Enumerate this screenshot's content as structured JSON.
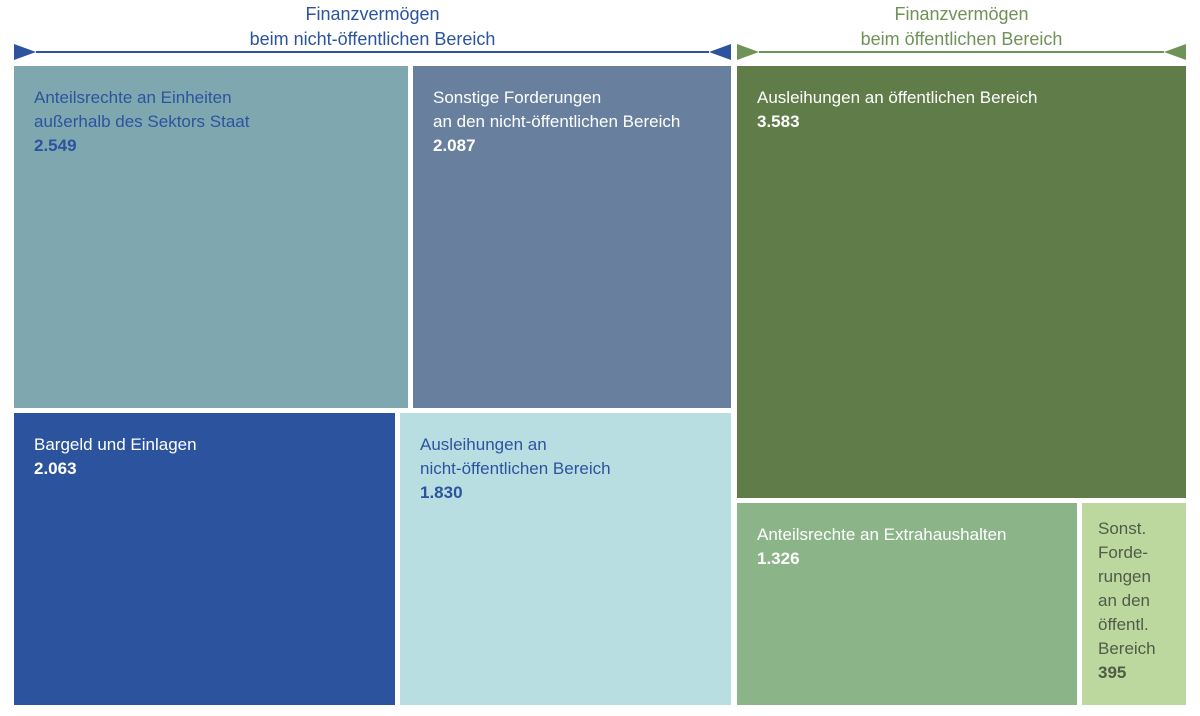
{
  "headers": {
    "left": "Finanzvermögen\nbeim nicht-öffentlichen Bereich",
    "right": "Finanzvermögen\nbeim öffentlichen Bereich"
  },
  "tiles": [
    {
      "label": "Anteilsrechte an Einheiten\naußerhalb des Sektors Staat",
      "value": "2.549"
    },
    {
      "label": "Sonstige Forderungen\nan den nicht-öffentlichen Bereich",
      "value": "2.087"
    },
    {
      "label": "Bargeld und Einlagen",
      "value": "2.063"
    },
    {
      "label": "Ausleihungen an\nnicht-öffentlichen Bereich",
      "value": "1.830"
    },
    {
      "label": "Ausleihungen an öffentlichen Bereich",
      "value": "3.583"
    },
    {
      "label": "Anteilsrechte an Extrahaushalten",
      "value": "1.326"
    },
    {
      "label": "Sonst.\nForde-\nrungen\nan den\nöffentl.\nBereich",
      "value": "395"
    }
  ],
  "palette": {
    "blue_dark": "#2C549E",
    "teal": "#7FA7B0",
    "slate_blue": "#68809E",
    "light_cyan": "#B9DEE2",
    "green_dark": "#607C49",
    "green_mid": "#8BB489",
    "green_light": "#BDD89F",
    "green_header": "#6E9258",
    "green_light_text": "#505B48",
    "white_text": "#FFFFFF"
  },
  "chart_data": {
    "type": "treemap",
    "legend_position": "none",
    "groups": [
      {
        "name": "Finanzvermögen beim nicht-öffentlichen Bereich",
        "color_theme": "blue",
        "items": [
          {
            "label": "Anteilsrechte an Einheiten außerhalb des Sektors Staat",
            "value": 2549,
            "color": "#7FA7B0"
          },
          {
            "label": "Sonstige Forderungen an den nicht-öffentlichen Bereich",
            "value": 2087,
            "color": "#68809E"
          },
          {
            "label": "Bargeld und Einlagen",
            "value": 2063,
            "color": "#2C549E"
          },
          {
            "label": "Ausleihungen an nicht-öffentlichen Bereich",
            "value": 1830,
            "color": "#B9DEE2"
          }
        ]
      },
      {
        "name": "Finanzvermögen beim öffentlichen Bereich",
        "color_theme": "green",
        "items": [
          {
            "label": "Ausleihungen an öffentlichen Bereich",
            "value": 3583,
            "color": "#607C49"
          },
          {
            "label": "Anteilsrechte an Extrahaushalten",
            "value": 1326,
            "color": "#8BB489"
          },
          {
            "label": "Sonst. Forderungen an den öffentl. Bereich",
            "value": 395,
            "color": "#BDD89F"
          }
        ]
      }
    ]
  }
}
